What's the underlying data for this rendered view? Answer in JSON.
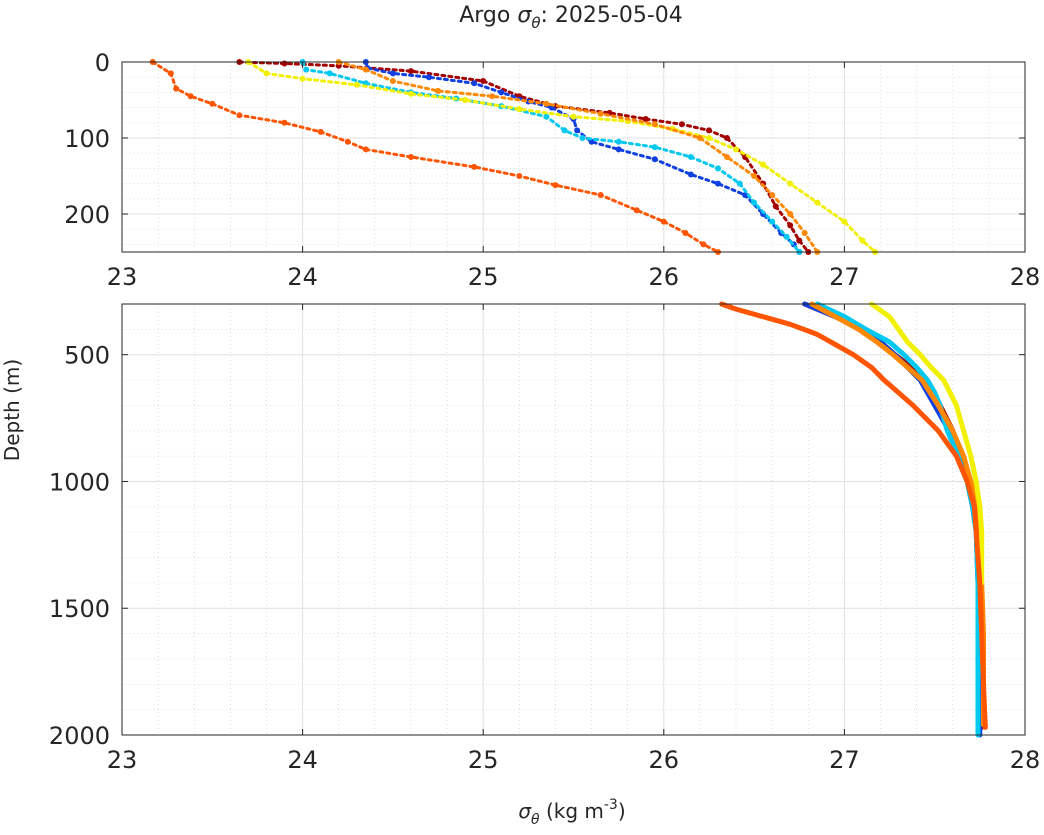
{
  "title_prefix": "Argo ",
  "title_symbol": "σ",
  "title_symbol_sub": "θ",
  "title_suffix": ": 2025-05-04",
  "ylabel": "Depth (m)",
  "xlabel_symbol": "σ",
  "xlabel_symbol_sub": "θ",
  "xlabel_unit": " (kg m",
  "xlabel_exp": "-3",
  "xlabel_close": ")",
  "chart_data": [
    {
      "type": "scatter",
      "panel": "top",
      "xlim": [
        23,
        28
      ],
      "ylim": [
        0,
        250
      ],
      "y_reversed": true,
      "xticks": [
        23,
        24,
        25,
        26,
        27,
        28
      ],
      "yticks": [
        0,
        100,
        200
      ],
      "grid": true,
      "minor_grid": true,
      "series": [
        {
          "color": "#a50000",
          "points": [
            [
              23.65,
              0
            ],
            [
              23.9,
              2
            ],
            [
              24.2,
              5
            ],
            [
              24.6,
              12
            ],
            [
              25.0,
              25
            ],
            [
              25.2,
              45
            ],
            [
              25.4,
              58
            ],
            [
              25.7,
              67
            ],
            [
              25.9,
              75
            ],
            [
              26.1,
              82
            ],
            [
              26.25,
              90
            ],
            [
              26.35,
              100
            ],
            [
              26.45,
              125
            ],
            [
              26.55,
              160
            ],
            [
              26.62,
              190
            ],
            [
              26.7,
              215
            ],
            [
              26.75,
              235
            ],
            [
              26.8,
              250
            ]
          ]
        },
        {
          "color": "#1040e0",
          "points": [
            [
              24.35,
              0
            ],
            [
              24.36,
              8
            ],
            [
              24.5,
              15
            ],
            [
              24.7,
              20
            ],
            [
              24.95,
              28
            ],
            [
              25.1,
              40
            ],
            [
              25.25,
              52
            ],
            [
              25.38,
              60
            ],
            [
              25.5,
              75
            ],
            [
              25.52,
              90
            ],
            [
              25.6,
              105
            ],
            [
              25.75,
              115
            ],
            [
              25.95,
              128
            ],
            [
              26.15,
              148
            ],
            [
              26.3,
              160
            ],
            [
              26.45,
              175
            ],
            [
              26.55,
              200
            ],
            [
              26.65,
              225
            ],
            [
              26.72,
              240
            ],
            [
              26.75,
              250
            ]
          ]
        },
        {
          "color": "#00c8f0",
          "points": [
            [
              24.0,
              0
            ],
            [
              24.02,
              10
            ],
            [
              24.15,
              15
            ],
            [
              24.35,
              28
            ],
            [
              24.6,
              40
            ],
            [
              24.85,
              48
            ],
            [
              25.1,
              58
            ],
            [
              25.35,
              72
            ],
            [
              25.45,
              90
            ],
            [
              25.55,
              100
            ],
            [
              25.75,
              105
            ],
            [
              25.95,
              112
            ],
            [
              26.15,
              125
            ],
            [
              26.3,
              140
            ],
            [
              26.42,
              160
            ],
            [
              26.5,
              185
            ],
            [
              26.6,
              210
            ],
            [
              26.68,
              230
            ],
            [
              26.75,
              250
            ]
          ]
        },
        {
          "color": "#f0f000",
          "points": [
            [
              23.7,
              0
            ],
            [
              23.8,
              15
            ],
            [
              24.0,
              22
            ],
            [
              24.3,
              30
            ],
            [
              24.6,
              42
            ],
            [
              24.9,
              50
            ],
            [
              25.2,
              62
            ],
            [
              25.5,
              72
            ],
            [
              25.8,
              78
            ],
            [
              26.05,
              88
            ],
            [
              26.25,
              100
            ],
            [
              26.4,
              115
            ],
            [
              26.55,
              135
            ],
            [
              26.7,
              160
            ],
            [
              26.85,
              185
            ],
            [
              27.0,
              210
            ],
            [
              27.1,
              235
            ],
            [
              27.17,
              250
            ]
          ]
        },
        {
          "color": "#ff8800",
          "points": [
            [
              24.2,
              0
            ],
            [
              24.35,
              10
            ],
            [
              24.5,
              25
            ],
            [
              24.75,
              38
            ],
            [
              25.05,
              45
            ],
            [
              25.35,
              55
            ],
            [
              25.65,
              68
            ],
            [
              25.95,
              82
            ],
            [
              26.2,
              100
            ],
            [
              26.35,
              125
            ],
            [
              26.5,
              150
            ],
            [
              26.6,
              175
            ],
            [
              26.7,
              200
            ],
            [
              26.78,
              225
            ],
            [
              26.85,
              250
            ]
          ]
        },
        {
          "color": "#ff5500",
          "points": [
            [
              23.17,
              0
            ],
            [
              23.27,
              15
            ],
            [
              23.3,
              35
            ],
            [
              23.38,
              45
            ],
            [
              23.5,
              55
            ],
            [
              23.65,
              70
            ],
            [
              23.9,
              80
            ],
            [
              24.1,
              92
            ],
            [
              24.25,
              105
            ],
            [
              24.35,
              115
            ],
            [
              24.6,
              125
            ],
            [
              24.95,
              138
            ],
            [
              25.2,
              150
            ],
            [
              25.4,
              162
            ],
            [
              25.65,
              175
            ],
            [
              25.85,
              195
            ],
            [
              26.0,
              210
            ],
            [
              26.12,
              225
            ],
            [
              26.22,
              240
            ],
            [
              26.3,
              250
            ]
          ]
        }
      ]
    },
    {
      "type": "line",
      "panel": "bottom",
      "xlim": [
        23,
        28
      ],
      "ylim": [
        300,
        2000
      ],
      "y_reversed": true,
      "xticks": [
        23,
        24,
        25,
        26,
        27,
        28
      ],
      "yticks": [
        500,
        1000,
        1500,
        2000
      ],
      "grid": true,
      "minor_grid": true,
      "series": [
        {
          "color": "#a50000",
          "points": [
            [
              26.78,
              300
            ],
            [
              26.95,
              350
            ],
            [
              27.1,
              400
            ],
            [
              27.2,
              450
            ],
            [
              27.28,
              500
            ],
            [
              27.37,
              550
            ],
            [
              27.45,
              600
            ],
            [
              27.53,
              700
            ],
            [
              27.6,
              800
            ],
            [
              27.65,
              900
            ],
            [
              27.7,
              1000
            ],
            [
              27.73,
              1100
            ],
            [
              27.74,
              1200
            ],
            [
              27.75,
              1400
            ],
            [
              27.76,
              1600
            ],
            [
              27.76,
              1800
            ],
            [
              27.76,
              1970
            ]
          ]
        },
        {
          "color": "#1040e0",
          "points": [
            [
              26.78,
              300
            ],
            [
              26.95,
              350
            ],
            [
              27.1,
              400
            ],
            [
              27.2,
              450
            ],
            [
              27.28,
              500
            ],
            [
              27.35,
              550
            ],
            [
              27.42,
              600
            ],
            [
              27.5,
              700
            ],
            [
              27.58,
              800
            ],
            [
              27.63,
              900
            ],
            [
              27.68,
              1000
            ],
            [
              27.71,
              1100
            ],
            [
              27.73,
              1200
            ],
            [
              27.74,
              1400
            ],
            [
              27.75,
              1600
            ],
            [
              27.75,
              1800
            ],
            [
              27.75,
              2000
            ]
          ]
        },
        {
          "color": "#00c8f0",
          "points": [
            [
              26.85,
              300
            ],
            [
              27.0,
              350
            ],
            [
              27.12,
              400
            ],
            [
              27.25,
              450
            ],
            [
              27.33,
              500
            ],
            [
              27.4,
              550
            ],
            [
              27.46,
              600
            ],
            [
              27.5,
              650
            ],
            [
              27.53,
              700
            ],
            [
              27.55,
              750
            ],
            [
              27.57,
              800
            ],
            [
              27.6,
              850
            ],
            [
              27.63,
              900
            ],
            [
              27.65,
              950
            ],
            [
              27.68,
              1000
            ],
            [
              27.71,
              1100
            ],
            [
              27.73,
              1200
            ],
            [
              27.74,
              1400
            ],
            [
              27.74,
              1600
            ],
            [
              27.74,
              1800
            ],
            [
              27.74,
              2000
            ]
          ]
        },
        {
          "color": "#ff8800",
          "points": [
            [
              26.82,
              300
            ],
            [
              26.95,
              350
            ],
            [
              27.08,
              400
            ],
            [
              27.18,
              450
            ],
            [
              27.27,
              500
            ],
            [
              27.35,
              550
            ],
            [
              27.43,
              600
            ],
            [
              27.52,
              700
            ],
            [
              27.6,
              800
            ],
            [
              27.66,
              900
            ],
            [
              27.7,
              1000
            ],
            [
              27.73,
              1100
            ],
            [
              27.75,
              1200
            ],
            [
              27.76,
              1400
            ],
            [
              27.77,
              1600
            ],
            [
              27.77,
              1800
            ],
            [
              27.77,
              1960
            ]
          ]
        },
        {
          "color": "#f0f000",
          "points": [
            [
              27.15,
              300
            ],
            [
              27.25,
              350
            ],
            [
              27.3,
              400
            ],
            [
              27.35,
              450
            ],
            [
              27.42,
              500
            ],
            [
              27.48,
              550
            ],
            [
              27.55,
              600
            ],
            [
              27.62,
              700
            ],
            [
              27.66,
              800
            ],
            [
              27.7,
              900
            ],
            [
              27.73,
              1000
            ],
            [
              27.75,
              1100
            ],
            [
              27.76,
              1200
            ],
            [
              27.76,
              1300
            ],
            [
              27.76,
              1400
            ]
          ]
        },
        {
          "color": "#ff5500",
          "points": [
            [
              26.32,
              300
            ],
            [
              26.4,
              320
            ],
            [
              26.55,
              350
            ],
            [
              26.7,
              380
            ],
            [
              26.85,
              420
            ],
            [
              26.95,
              460
            ],
            [
              27.05,
              500
            ],
            [
              27.15,
              550
            ],
            [
              27.22,
              600
            ],
            [
              27.3,
              650
            ],
            [
              27.38,
              700
            ],
            [
              27.45,
              750
            ],
            [
              27.52,
              800
            ],
            [
              27.57,
              850
            ],
            [
              27.62,
              900
            ],
            [
              27.65,
              950
            ],
            [
              27.68,
              1000
            ],
            [
              27.7,
              1050
            ],
            [
              27.72,
              1100
            ],
            [
              27.73,
              1200
            ],
            [
              27.74,
              1300
            ],
            [
              27.75,
              1400
            ],
            [
              27.76,
              1600
            ],
            [
              27.77,
              1800
            ],
            [
              27.78,
              1970
            ]
          ]
        }
      ]
    }
  ]
}
